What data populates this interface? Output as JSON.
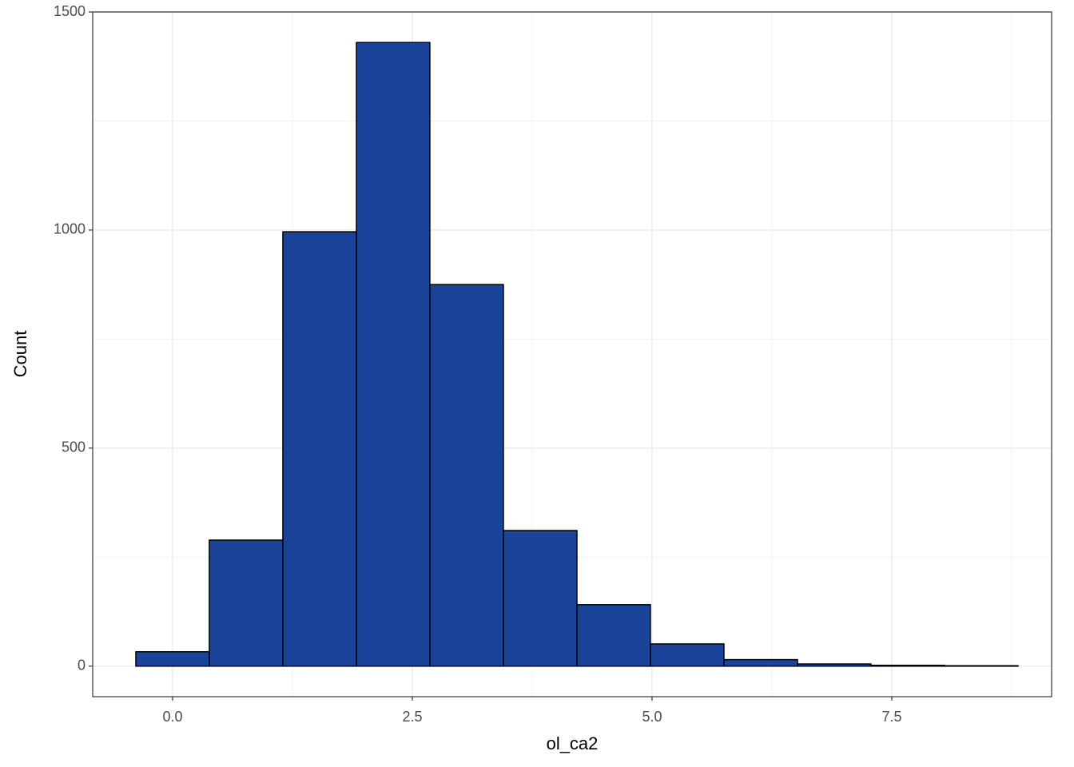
{
  "chart_data": {
    "type": "histogram",
    "x_label": "ol_ca2",
    "y_label": "Count",
    "bins": [
      -0.383,
      0.383,
      1.15,
      1.917,
      2.683,
      3.45,
      4.217,
      4.983,
      5.75,
      6.517,
      7.283,
      8.05,
      8.817
    ],
    "counts": [
      33,
      289,
      996,
      1430,
      875,
      311,
      141,
      51,
      15,
      5,
      2,
      1
    ],
    "color": "#1a4499",
    "xlim": [
      -0.833,
      9.167
    ],
    "ylim": [
      -70,
      1500
    ],
    "xticks": [
      {
        "value": 0,
        "label": "0.0"
      },
      {
        "value": 2.5,
        "label": "2.5"
      },
      {
        "value": 5,
        "label": "5.0"
      },
      {
        "value": 7.5,
        "label": "7.5"
      }
    ],
    "yticks": [
      0,
      500,
      1000,
      1500
    ],
    "x_minor_grid": [
      1.25,
      3.75,
      6.25,
      8.75
    ],
    "y_minor_grid": [
      250,
      750,
      1250
    ],
    "grid": true
  }
}
